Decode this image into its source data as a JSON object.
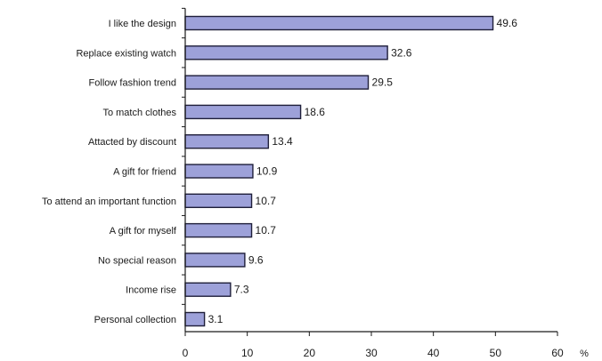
{
  "chart_data": {
    "type": "bar",
    "orientation": "horizontal",
    "categories": [
      "I like the design",
      "Replace existing watch",
      "Follow fashion trend",
      "To match clothes",
      "Attacted by discount",
      "A gift for friend",
      "To attend an important function",
      "A gift for myself",
      "No special reason",
      "Income rise",
      "Personal collection"
    ],
    "values": [
      49.6,
      32.6,
      29.5,
      18.6,
      13.4,
      10.9,
      10.7,
      10.7,
      9.6,
      7.3,
      3.1
    ],
    "value_labels": [
      "49.6",
      "32.6",
      "29.5",
      "18.6",
      "13.4",
      "10.9",
      "10.7",
      "10.7",
      "9.6",
      "7.3",
      "3.1"
    ],
    "xlim": [
      0,
      60
    ],
    "xticks": [
      0,
      10,
      20,
      30,
      40,
      50,
      60
    ],
    "xtick_labels": [
      "0",
      "10",
      "20",
      "30",
      "40",
      "50",
      "60"
    ],
    "x_unit": "%",
    "grid": false,
    "legend": "none",
    "colors": {
      "bar_fill": "#9da1d9",
      "bar_stroke": "#1f1f3a",
      "axis": "#1a1a1a"
    }
  }
}
